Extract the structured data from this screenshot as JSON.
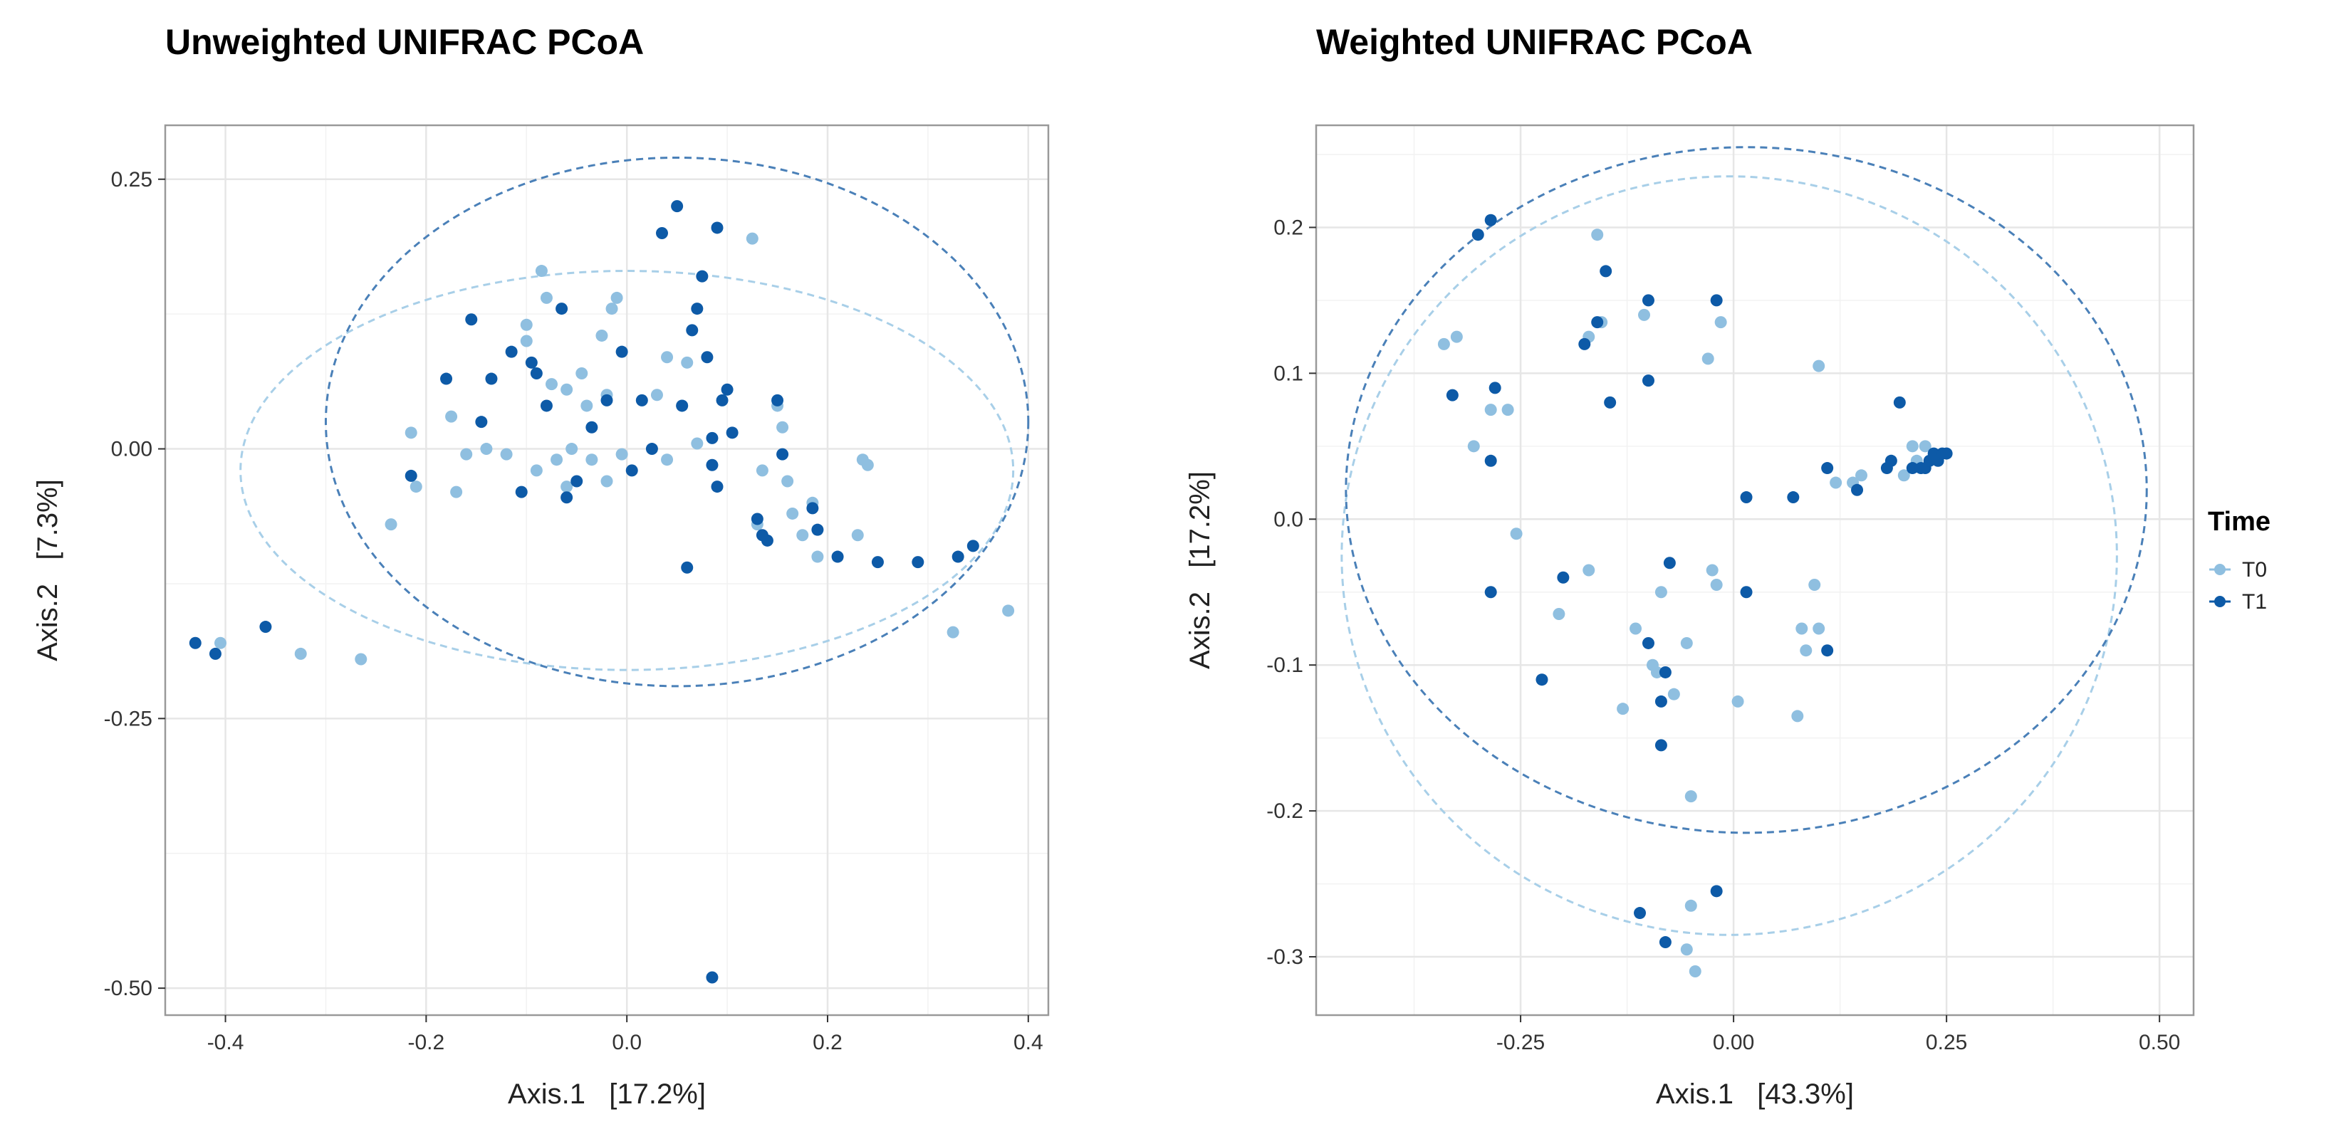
{
  "legend": {
    "title": "Time",
    "entries": [
      {
        "label": "T0",
        "color": "#8fbfe0"
      },
      {
        "label": "T1",
        "color": "#0d5aa7"
      }
    ]
  },
  "chart_data": [
    {
      "type": "scatter",
      "title": "Unweighted UNIFRAC PCoA",
      "xlabel": "Axis.1   [17.2%]",
      "ylabel": "Axis.2   [7.3%]",
      "xlim": [
        -0.46,
        0.42
      ],
      "ylim": [
        -0.525,
        0.3
      ],
      "xticks": [
        -0.4,
        -0.2,
        0.0,
        0.2,
        0.4
      ],
      "xtick_labels": [
        "-0.4",
        "-0.2",
        "0.0",
        "0.2",
        "0.4"
      ],
      "yticks": [
        0.25,
        0.0,
        -0.25,
        -0.5
      ],
      "ytick_labels": [
        "0.25",
        "0.00",
        "-0.25",
        "-0.50"
      ],
      "ellipses": [
        {
          "group": "T0",
          "cx": 0.0,
          "cy": -0.02,
          "rx": 0.385,
          "ry": 0.185
        },
        {
          "group": "T1",
          "cx": 0.05,
          "cy": 0.025,
          "rx": 0.35,
          "ry": 0.245
        }
      ],
      "series": [
        {
          "name": "T0",
          "points": [
            [
              -0.405,
              -0.18
            ],
            [
              -0.325,
              -0.19
            ],
            [
              -0.265,
              -0.195
            ],
            [
              -0.235,
              -0.07
            ],
            [
              -0.215,
              0.015
            ],
            [
              -0.21,
              -0.035
            ],
            [
              -0.175,
              0.03
            ],
            [
              -0.17,
              -0.04
            ],
            [
              -0.16,
              -0.005
            ],
            [
              -0.14,
              0.0
            ],
            [
              -0.12,
              -0.005
            ],
            [
              -0.1,
              0.115
            ],
            [
              -0.1,
              0.1
            ],
            [
              -0.09,
              -0.02
            ],
            [
              -0.085,
              0.165
            ],
            [
              -0.08,
              0.14
            ],
            [
              -0.075,
              0.06
            ],
            [
              -0.07,
              -0.01
            ],
            [
              -0.06,
              0.055
            ],
            [
              -0.06,
              -0.035
            ],
            [
              -0.055,
              0.0
            ],
            [
              -0.045,
              0.07
            ],
            [
              -0.04,
              0.04
            ],
            [
              -0.035,
              -0.01
            ],
            [
              -0.025,
              0.105
            ],
            [
              -0.02,
              0.05
            ],
            [
              -0.02,
              -0.03
            ],
            [
              -0.015,
              0.13
            ],
            [
              -0.01,
              0.14
            ],
            [
              -0.005,
              -0.005
            ],
            [
              0.03,
              0.05
            ],
            [
              0.04,
              0.085
            ],
            [
              0.04,
              -0.01
            ],
            [
              0.055,
              0.04
            ],
            [
              0.06,
              0.08
            ],
            [
              0.07,
              0.005
            ],
            [
              0.125,
              0.195
            ],
            [
              0.13,
              -0.07
            ],
            [
              0.135,
              -0.02
            ],
            [
              0.15,
              0.04
            ],
            [
              0.155,
              0.02
            ],
            [
              0.16,
              -0.03
            ],
            [
              0.165,
              -0.06
            ],
            [
              0.175,
              -0.08
            ],
            [
              0.185,
              -0.05
            ],
            [
              0.19,
              -0.1
            ],
            [
              0.23,
              -0.08
            ],
            [
              0.235,
              -0.01
            ],
            [
              0.24,
              -0.015
            ],
            [
              0.325,
              -0.17
            ],
            [
              0.38,
              -0.15
            ]
          ]
        },
        {
          "name": "T1",
          "points": [
            [
              -0.43,
              -0.18
            ],
            [
              -0.41,
              -0.19
            ],
            [
              -0.36,
              -0.165
            ],
            [
              -0.215,
              -0.025
            ],
            [
              -0.18,
              0.065
            ],
            [
              -0.155,
              0.12
            ],
            [
              -0.145,
              0.025
            ],
            [
              -0.135,
              0.065
            ],
            [
              -0.115,
              0.09
            ],
            [
              -0.105,
              -0.04
            ],
            [
              -0.095,
              0.08
            ],
            [
              -0.09,
              0.07
            ],
            [
              -0.08,
              0.04
            ],
            [
              -0.065,
              0.13
            ],
            [
              -0.06,
              -0.045
            ],
            [
              -0.05,
              -0.03
            ],
            [
              -0.035,
              0.02
            ],
            [
              -0.02,
              0.045
            ],
            [
              -0.005,
              0.09
            ],
            [
              0.005,
              -0.02
            ],
            [
              0.015,
              0.045
            ],
            [
              0.025,
              0.0
            ],
            [
              0.035,
              0.2
            ],
            [
              0.05,
              0.225
            ],
            [
              0.055,
              0.04
            ],
            [
              0.06,
              -0.11
            ],
            [
              0.065,
              0.11
            ],
            [
              0.07,
              0.13
            ],
            [
              0.075,
              0.16
            ],
            [
              0.08,
              0.085
            ],
            [
              0.085,
              0.01
            ],
            [
              0.085,
              -0.015
            ],
            [
              0.09,
              0.205
            ],
            [
              0.09,
              -0.035
            ],
            [
              0.095,
              0.045
            ],
            [
              0.1,
              0.055
            ],
            [
              0.105,
              0.015
            ],
            [
              0.13,
              -0.065
            ],
            [
              0.135,
              -0.08
            ],
            [
              0.14,
              -0.085
            ],
            [
              0.15,
              0.045
            ],
            [
              0.155,
              -0.005
            ],
            [
              0.185,
              -0.055
            ],
            [
              0.19,
              -0.075
            ],
            [
              0.21,
              -0.1
            ],
            [
              0.25,
              -0.105
            ],
            [
              0.29,
              -0.105
            ],
            [
              0.33,
              -0.1
            ],
            [
              0.345,
              -0.09
            ],
            [
              0.085,
              -0.49
            ]
          ]
        }
      ]
    },
    {
      "type": "scatter",
      "title": "Weighted UNIFRAC PCoA",
      "xlabel": "Axis.1   [43.3%]",
      "ylabel": "Axis.2   [17.2%]",
      "xlim": [
        -0.49,
        0.54
      ],
      "ylim": [
        -0.34,
        0.27
      ],
      "xticks": [
        -0.25,
        0.0,
        0.25,
        0.5
      ],
      "xtick_labels": [
        "-0.25",
        "0.00",
        "0.25",
        "0.50"
      ],
      "yticks": [
        0.2,
        0.1,
        0.0,
        -0.1,
        -0.2,
        -0.3
      ],
      "ytick_labels": [
        "0.2",
        "0.1",
        "0.0",
        "-0.1",
        "-0.2",
        "-0.3"
      ],
      "ellipses": [
        {
          "group": "T0",
          "cx": -0.005,
          "cy": -0.025,
          "rx": 0.455,
          "ry": 0.26
        },
        {
          "group": "T1",
          "cx": 0.015,
          "cy": 0.02,
          "rx": 0.47,
          "ry": 0.235
        }
      ],
      "series": [
        {
          "name": "T0",
          "points": [
            [
              -0.34,
              0.12
            ],
            [
              -0.325,
              0.125
            ],
            [
              -0.305,
              0.05
            ],
            [
              -0.285,
              0.075
            ],
            [
              -0.265,
              0.075
            ],
            [
              -0.255,
              -0.01
            ],
            [
              -0.205,
              -0.065
            ],
            [
              -0.17,
              -0.035
            ],
            [
              -0.17,
              0.125
            ],
            [
              -0.155,
              0.135
            ],
            [
              -0.16,
              0.195
            ],
            [
              -0.13,
              -0.13
            ],
            [
              -0.115,
              -0.075
            ],
            [
              -0.105,
              0.14
            ],
            [
              -0.095,
              -0.1
            ],
            [
              -0.09,
              -0.105
            ],
            [
              -0.085,
              -0.05
            ],
            [
              -0.07,
              -0.12
            ],
            [
              -0.055,
              -0.085
            ],
            [
              -0.05,
              -0.19
            ],
            [
              -0.05,
              -0.265
            ],
            [
              -0.055,
              -0.295
            ],
            [
              -0.045,
              -0.31
            ],
            [
              -0.03,
              0.11
            ],
            [
              -0.025,
              -0.035
            ],
            [
              -0.02,
              -0.045
            ],
            [
              -0.015,
              0.135
            ],
            [
              0.005,
              -0.125
            ],
            [
              0.075,
              -0.135
            ],
            [
              0.08,
              -0.075
            ],
            [
              0.085,
              -0.09
            ],
            [
              0.095,
              -0.045
            ],
            [
              0.1,
              0.105
            ],
            [
              0.1,
              -0.075
            ],
            [
              0.12,
              0.025
            ],
            [
              0.14,
              0.025
            ],
            [
              0.15,
              0.03
            ],
            [
              0.2,
              0.03
            ],
            [
              0.21,
              0.05
            ],
            [
              0.215,
              0.04
            ],
            [
              0.225,
              0.05
            ]
          ]
        },
        {
          "name": "T1",
          "points": [
            [
              -0.3,
              0.195
            ],
            [
              -0.285,
              0.205
            ],
            [
              -0.33,
              0.085
            ],
            [
              -0.28,
              0.09
            ],
            [
              -0.285,
              0.04
            ],
            [
              -0.285,
              -0.05
            ],
            [
              -0.225,
              -0.11
            ],
            [
              -0.2,
              -0.04
            ],
            [
              -0.175,
              0.12
            ],
            [
              -0.16,
              0.135
            ],
            [
              -0.15,
              0.17
            ],
            [
              -0.145,
              0.08
            ],
            [
              -0.1,
              0.15
            ],
            [
              -0.1,
              0.095
            ],
            [
              -0.1,
              -0.085
            ],
            [
              -0.085,
              -0.125
            ],
            [
              -0.08,
              -0.105
            ],
            [
              -0.085,
              -0.155
            ],
            [
              -0.075,
              -0.03
            ],
            [
              -0.08,
              -0.29
            ],
            [
              -0.11,
              -0.27
            ],
            [
              -0.02,
              0.15
            ],
            [
              -0.02,
              -0.255
            ],
            [
              0.015,
              -0.05
            ],
            [
              0.015,
              0.015
            ],
            [
              0.07,
              0.015
            ],
            [
              0.11,
              0.035
            ],
            [
              0.11,
              -0.09
            ],
            [
              0.145,
              0.02
            ],
            [
              0.18,
              0.035
            ],
            [
              0.185,
              0.04
            ],
            [
              0.195,
              0.08
            ],
            [
              0.21,
              0.035
            ],
            [
              0.22,
              0.035
            ],
            [
              0.225,
              0.035
            ],
            [
              0.23,
              0.04
            ],
            [
              0.235,
              0.045
            ],
            [
              0.24,
              0.04
            ],
            [
              0.245,
              0.045
            ],
            [
              0.25,
              0.045
            ]
          ]
        }
      ]
    }
  ]
}
